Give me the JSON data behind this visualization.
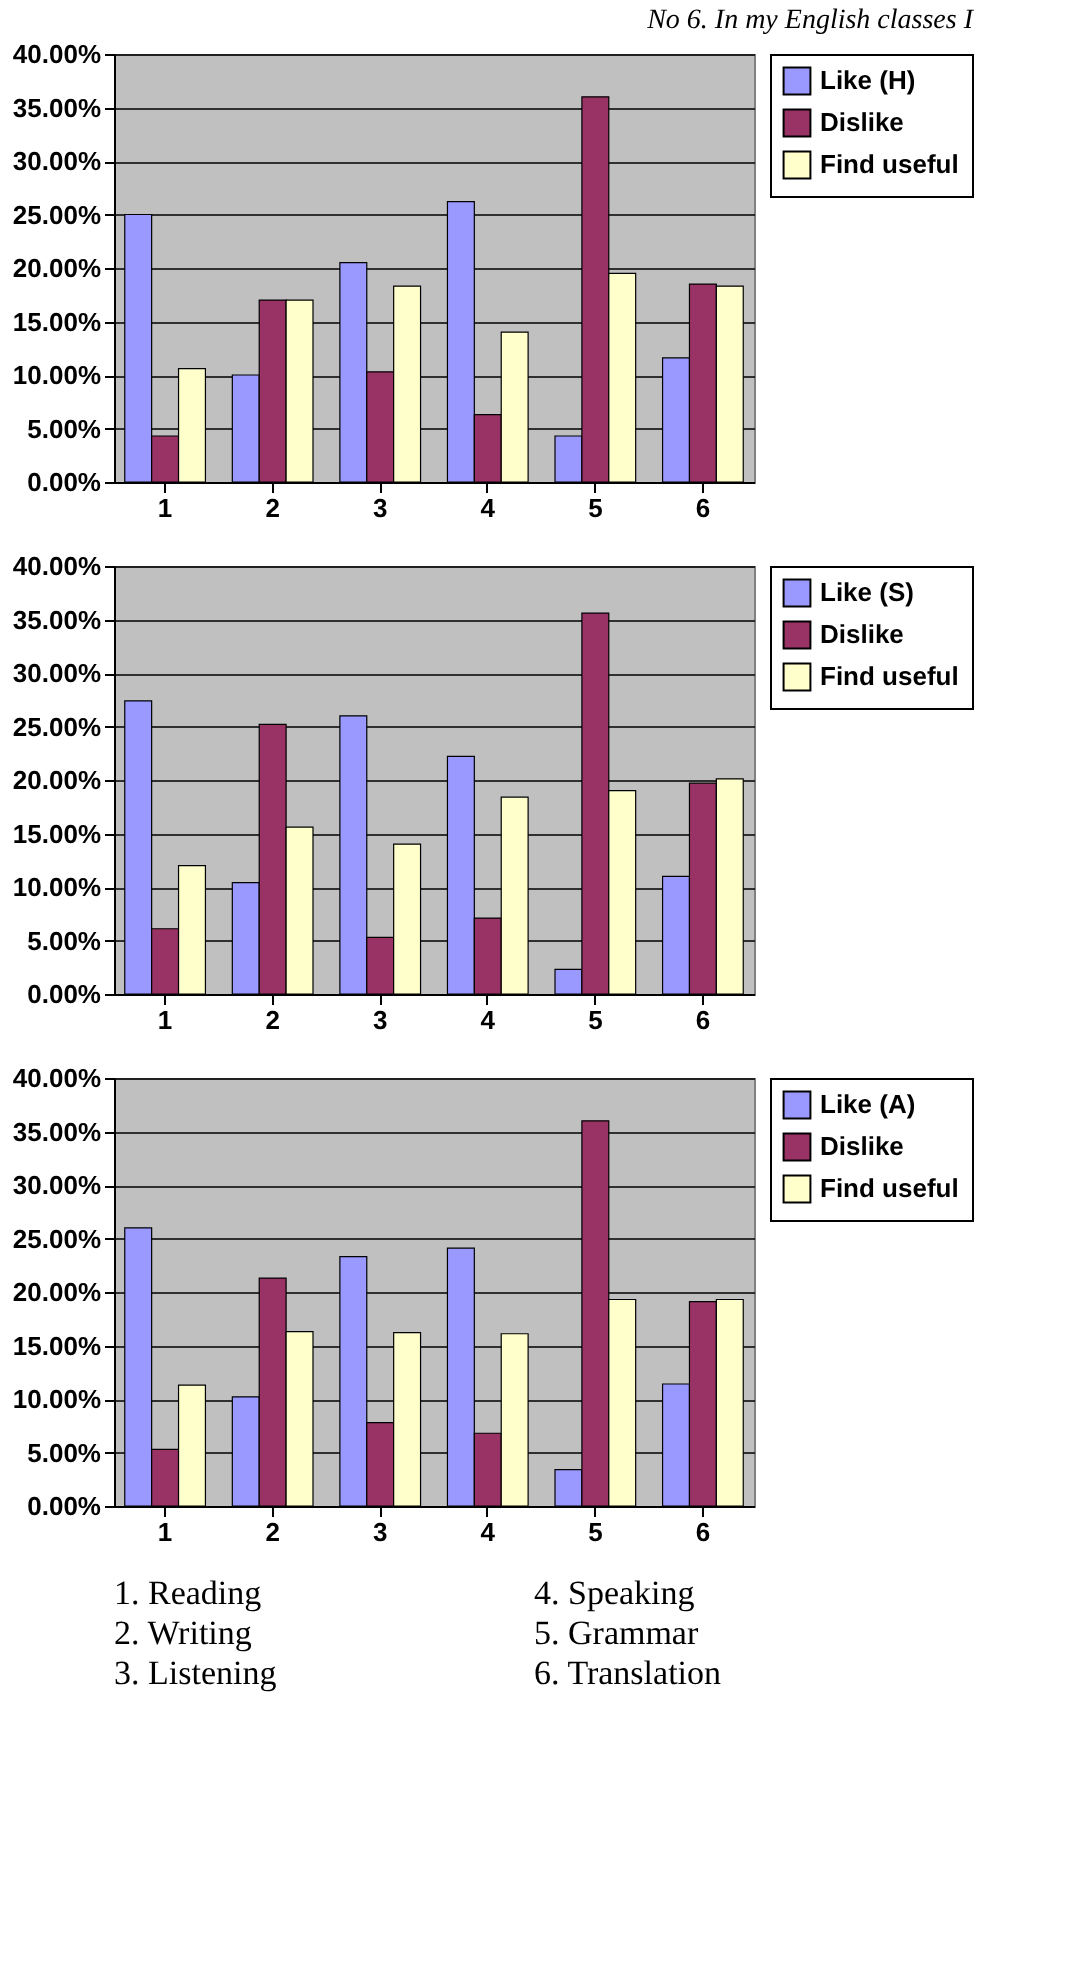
{
  "chart_data": [
    {
      "type": "bar",
      "title": "No 6.    In my English classes I",
      "categories": [
        "1",
        "2",
        "3",
        "4",
        "5",
        "6"
      ],
      "ylim": [
        0,
        40
      ],
      "yticks": [
        {
          "value": 0,
          "label": "0.00%"
        },
        {
          "value": 5,
          "label": "5.00%"
        },
        {
          "value": 10,
          "label": "10.00%"
        },
        {
          "value": 15,
          "label": "15.00%"
        },
        {
          "value": 20,
          "label": "20.00%"
        },
        {
          "value": 25,
          "label": "25.00%"
        },
        {
          "value": 30,
          "label": "30.00%"
        },
        {
          "value": 35,
          "label": "35.00%"
        },
        {
          "value": 40,
          "label": "40.00%"
        }
      ],
      "grid": "y",
      "legend": "right",
      "series": [
        {
          "name": "Like (H)",
          "color": "#9999ff",
          "values": [
            25,
            10,
            20.5,
            26.2,
            4.3,
            11.6
          ]
        },
        {
          "name": "Dislike",
          "color": "#993366",
          "values": [
            4.3,
            17,
            10.3,
            6.3,
            36,
            18.5
          ]
        },
        {
          "name": "Find useful",
          "color": "#ffffcc",
          "values": [
            10.6,
            17,
            18.3,
            14,
            19.5,
            18.3
          ]
        }
      ]
    },
    {
      "type": "bar",
      "categories": [
        "1",
        "2",
        "3",
        "4",
        "5",
        "6"
      ],
      "ylim": [
        0,
        40
      ],
      "yticks": [
        {
          "value": 0,
          "label": "0.00%"
        },
        {
          "value": 5,
          "label": "5.00%"
        },
        {
          "value": 10,
          "label": "10.00%"
        },
        {
          "value": 15,
          "label": "15.00%"
        },
        {
          "value": 20,
          "label": "20.00%"
        },
        {
          "value": 25,
          "label": "25.00%"
        },
        {
          "value": 30,
          "label": "30.00%"
        },
        {
          "value": 35,
          "label": "35.00%"
        },
        {
          "value": 40,
          "label": "40.00%"
        }
      ],
      "grid": "y",
      "legend": "right",
      "series": [
        {
          "name": "Like (S)",
          "color": "#9999ff",
          "values": [
            27.4,
            10.4,
            26,
            22.2,
            2.3,
            11
          ]
        },
        {
          "name": "Dislike",
          "color": "#993366",
          "values": [
            6.1,
            25.2,
            5.3,
            7.1,
            35.6,
            19.7
          ]
        },
        {
          "name": "Find useful",
          "color": "#ffffcc",
          "values": [
            12,
            15.6,
            14,
            18.4,
            19,
            20.1
          ]
        }
      ]
    },
    {
      "type": "bar",
      "categories": [
        "1",
        "2",
        "3",
        "4",
        "5",
        "6"
      ],
      "ylim": [
        0,
        40
      ],
      "yticks": [
        {
          "value": 0,
          "label": "0.00%"
        },
        {
          "value": 5,
          "label": "5.00%"
        },
        {
          "value": 10,
          "label": "10.00%"
        },
        {
          "value": 15,
          "label": "15.00%"
        },
        {
          "value": 20,
          "label": "20.00%"
        },
        {
          "value": 25,
          "label": "25.00%"
        },
        {
          "value": 30,
          "label": "30.00%"
        },
        {
          "value": 35,
          "label": "35.00%"
        },
        {
          "value": 40,
          "label": "40.00%"
        }
      ],
      "grid": "y",
      "legend": "right",
      "series": [
        {
          "name": "Like (A)",
          "color": "#9999ff",
          "values": [
            26,
            10.2,
            23.3,
            24.1,
            3.4,
            11.4
          ]
        },
        {
          "name": "Dislike",
          "color": "#993366",
          "values": [
            5.3,
            21.3,
            7.8,
            6.8,
            36,
            19.1
          ]
        },
        {
          "name": "Find useful",
          "color": "#ffffcc",
          "values": [
            11.3,
            16.3,
            16.2,
            16.1,
            19.3,
            19.3
          ]
        }
      ],
      "annotations": [
        "1. Reading",
        "2. Writing",
        "3. Listening",
        "4. Speaking",
        "5. Grammar",
        "6. Translation"
      ]
    }
  ]
}
